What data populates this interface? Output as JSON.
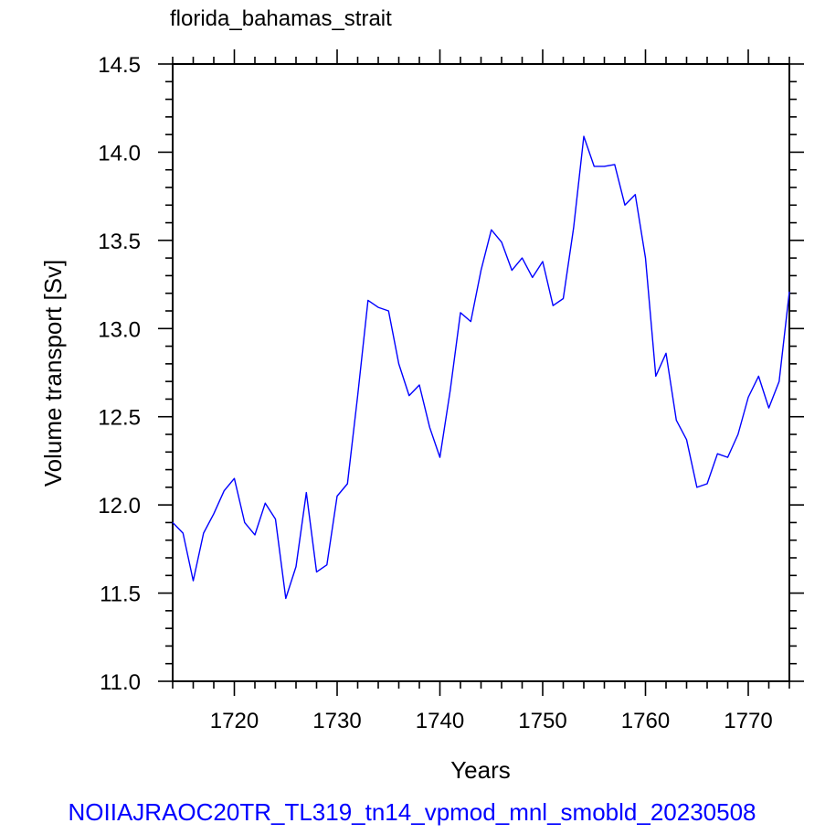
{
  "chart_data": {
    "type": "line",
    "title": "florida_bahamas_strait",
    "subtitle": "NOIIAJRAOC20TR_TL319_tn14_vpmod_mnl_smobld_20230508",
    "xlabel": "Years",
    "ylabel": "Volume transport [Sv]",
    "xlim": [
      1714,
      1774
    ],
    "ylim": [
      11.0,
      14.5
    ],
    "x_ticks": [
      1720,
      1730,
      1740,
      1750,
      1760,
      1770
    ],
    "x_tick_labels": [
      "1720",
      "1730",
      "1740",
      "1750",
      "1760",
      "1770"
    ],
    "y_ticks": [
      11.0,
      11.5,
      12.0,
      12.5,
      13.0,
      13.5,
      14.0,
      14.5
    ],
    "y_tick_labels": [
      "11.0",
      "11.5",
      "12.0",
      "12.5",
      "13.0",
      "13.5",
      "14.0",
      "14.5"
    ],
    "grid": false,
    "series": [
      {
        "color": "#0000ff",
        "x": [
          1714,
          1715,
          1716,
          1717,
          1718,
          1719,
          1720,
          1721,
          1722,
          1723,
          1724,
          1725,
          1726,
          1727,
          1728,
          1729,
          1730,
          1731,
          1732,
          1733,
          1734,
          1735,
          1736,
          1737,
          1738,
          1739,
          1740,
          1741,
          1742,
          1743,
          1744,
          1745,
          1746,
          1747,
          1748,
          1749,
          1750,
          1751,
          1752,
          1753,
          1754,
          1755,
          1756,
          1757,
          1758,
          1759,
          1760,
          1761,
          1762,
          1763,
          1764,
          1765,
          1766,
          1767,
          1768,
          1769,
          1770,
          1771,
          1772,
          1773,
          1774
        ],
        "values": [
          11.9,
          11.84,
          11.57,
          11.84,
          11.95,
          12.08,
          12.15,
          11.9,
          11.83,
          12.01,
          11.92,
          11.47,
          11.65,
          12.07,
          11.62,
          11.66,
          12.05,
          12.12,
          12.62,
          13.16,
          13.12,
          13.1,
          12.8,
          12.62,
          12.68,
          12.44,
          12.27,
          12.65,
          13.09,
          13.04,
          13.33,
          13.56,
          13.49,
          13.33,
          13.4,
          13.29,
          13.38,
          13.13,
          13.17,
          13.57,
          14.09,
          13.92,
          13.92,
          13.93,
          13.7,
          13.76,
          13.4,
          12.73,
          12.86,
          12.48,
          12.37,
          12.1,
          12.12,
          12.29,
          12.27,
          12.4,
          12.61,
          12.73,
          12.55,
          12.7,
          13.21
        ]
      }
    ]
  }
}
